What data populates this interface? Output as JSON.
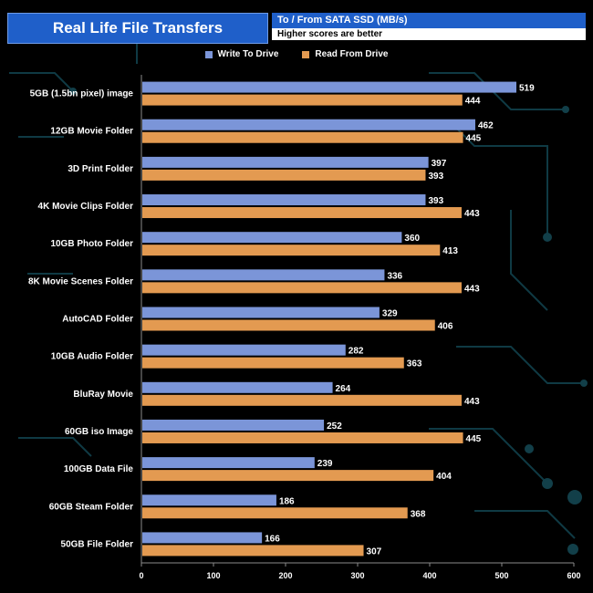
{
  "header": {
    "title": "Real Life File Transfers",
    "subtitle": "To /  From SATA SSD (MB/s)",
    "note": "Higher scores are better"
  },
  "colors": {
    "write": "#7b95d8",
    "read": "#e39a51"
  },
  "chart_data": {
    "type": "bar",
    "orientation": "horizontal",
    "title": "Real Life File Transfers",
    "xlabel": "",
    "ylabel": "",
    "xlim": [
      0,
      600
    ],
    "ticks": [
      0,
      100,
      200,
      300,
      400,
      500,
      600
    ],
    "categories": [
      "5GB (1.5bn pixel) image",
      "12GB Movie Folder",
      "3D Print Folder",
      "4K Movie Clips Folder",
      "10GB Photo Folder",
      "8K Movie Scenes Folder",
      "AutoCAD Folder",
      "10GB Audio Folder",
      "BluRay Movie",
      "60GB iso Image",
      "100GB Data File",
      "60GB Steam Folder",
      "50GB File Folder"
    ],
    "series": [
      {
        "name": "Write To  Drive",
        "values": [
          519,
          462,
          397,
          393,
          360,
          336,
          329,
          282,
          264,
          252,
          239,
          186,
          166
        ]
      },
      {
        "name": "Read From  Drive",
        "values": [
          444,
          445,
          393,
          443,
          413,
          443,
          406,
          363,
          443,
          445,
          404,
          368,
          307
        ]
      }
    ],
    "legend_position": "top-center"
  }
}
